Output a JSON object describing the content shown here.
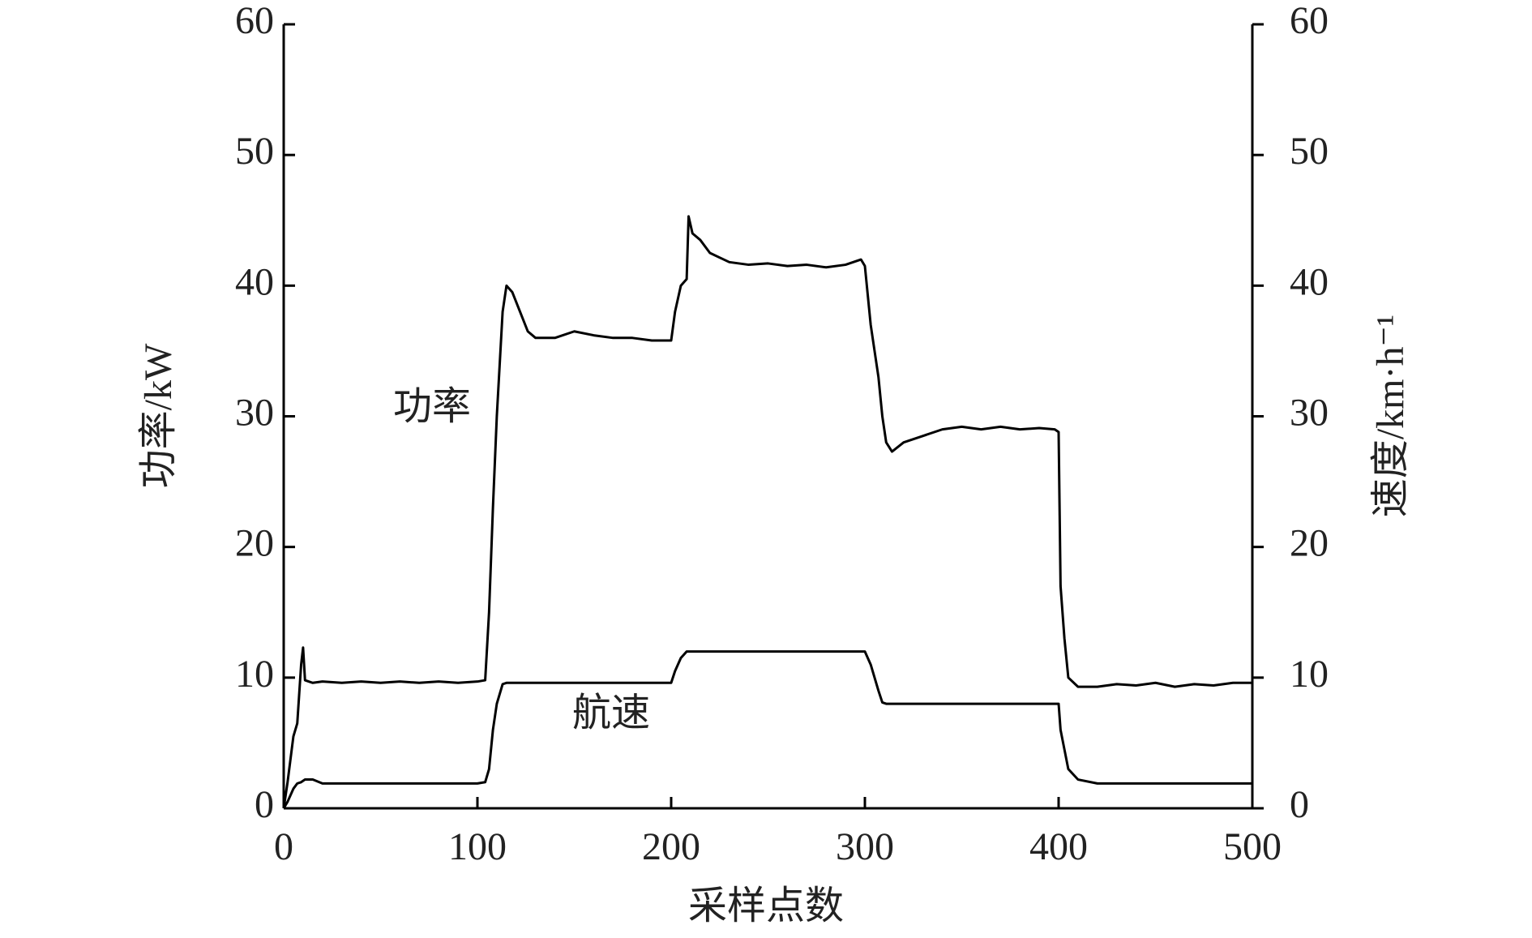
{
  "chart_data": {
    "type": "line",
    "x_label": "采样点数",
    "y_label": "功率/kW",
    "y2_label": "速度/km·h⁻¹",
    "x": [
      0,
      2,
      5,
      7,
      9,
      10,
      11,
      15,
      20,
      30,
      40,
      50,
      60,
      70,
      80,
      90,
      100,
      104,
      106,
      108,
      110,
      113,
      115,
      118,
      122,
      126,
      130,
      140,
      150,
      160,
      170,
      180,
      190,
      200,
      202,
      205,
      208,
      209,
      211,
      215,
      220,
      230,
      240,
      250,
      260,
      270,
      280,
      290,
      298,
      300,
      303,
      305,
      307,
      309,
      311,
      314,
      320,
      330,
      340,
      350,
      360,
      370,
      380,
      390,
      398,
      400,
      401,
      403,
      405,
      410,
      420,
      430,
      440,
      450,
      460,
      470,
      480,
      490,
      500
    ],
    "series": [
      {
        "name": "功率",
        "color": "#000000",
        "values": [
          0,
          2,
          5.5,
          6.5,
          11,
          12.3,
          9.8,
          9.6,
          9.7,
          9.6,
          9.7,
          9.6,
          9.7,
          9.6,
          9.7,
          9.6,
          9.7,
          9.8,
          15,
          23,
          30,
          38,
          40,
          39.5,
          38,
          36.5,
          36,
          36,
          36.5,
          36.2,
          36,
          36,
          35.8,
          35.8,
          38,
          40,
          40.5,
          45.3,
          44,
          43.5,
          42.5,
          41.8,
          41.6,
          41.7,
          41.5,
          41.6,
          41.4,
          41.6,
          42,
          41.5,
          37,
          35,
          33,
          30,
          28,
          27.3,
          28,
          28.5,
          29,
          29.2,
          29,
          29.2,
          29,
          29.1,
          29,
          28.8,
          17,
          13,
          10,
          9.3,
          9.3,
          9.5,
          9.4,
          9.6,
          9.3,
          9.5,
          9.4,
          9.6,
          9.6
        ]
      },
      {
        "name": "航速",
        "color": "#000000",
        "axis": "y2",
        "values": [
          0,
          0.5,
          1.5,
          1.9,
          2,
          2.1,
          2.2,
          2.2,
          1.9,
          1.9,
          1.9,
          1.9,
          1.9,
          1.9,
          1.9,
          1.9,
          1.9,
          2,
          3,
          6,
          8,
          9.5,
          9.6,
          9.6,
          9.6,
          9.6,
          9.6,
          9.6,
          9.6,
          9.6,
          9.6,
          9.6,
          9.6,
          9.6,
          10.5,
          11.5,
          12,
          12,
          12,
          12,
          12,
          12,
          12,
          12,
          12,
          12,
          12,
          12,
          12,
          12,
          11,
          10,
          9,
          8.1,
          8,
          8,
          8,
          8,
          8,
          8,
          8,
          8,
          8,
          8,
          8,
          8,
          6,
          4.5,
          3,
          2.2,
          1.9,
          1.9,
          1.9,
          1.9,
          1.9,
          1.9,
          1.9,
          1.9,
          1.9
        ]
      }
    ],
    "xlim": [
      0,
      500
    ],
    "xticks": [
      0,
      100,
      200,
      300,
      400,
      500
    ],
    "ylim": [
      0,
      60
    ],
    "yticks": [
      0,
      10,
      20,
      30,
      40,
      50,
      60
    ],
    "y2lim": [
      0,
      60
    ],
    "y2ticks": [
      0,
      10,
      20,
      30,
      40,
      50,
      60
    ],
    "grid": false
  }
}
